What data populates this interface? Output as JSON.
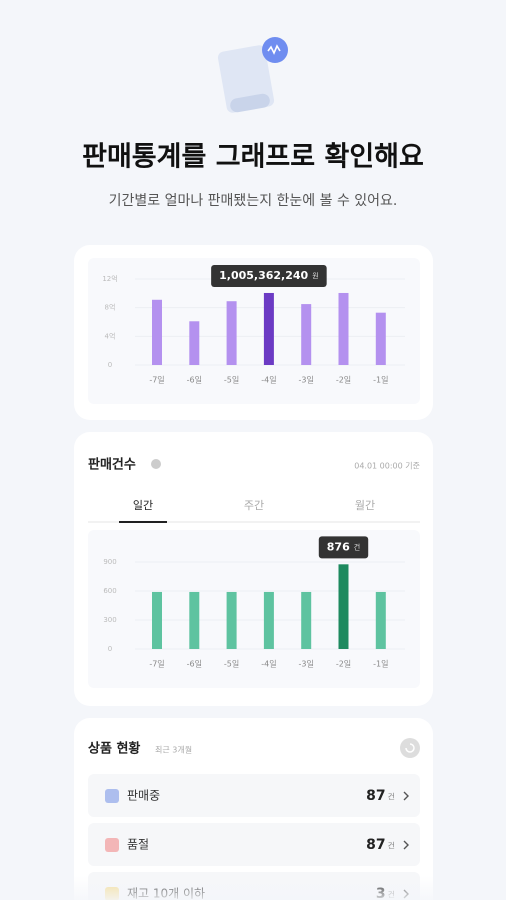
{
  "header": {
    "title": "판매통계를 그래프로 확인해요",
    "subtitle": "기간별로 얼마나 판매됐는지 한눈에 볼 수 있어요."
  },
  "chart_data": [
    {
      "type": "bar",
      "categories": [
        "-7일",
        "-6일",
        "-5일",
        "-4일",
        "-3일",
        "-2일",
        "-1일"
      ],
      "values": [
        9.1,
        6.1,
        8.9,
        10.05,
        8.5,
        10.05,
        7.3
      ],
      "value_labels": [
        null,
        null,
        null,
        "1,005,362,240",
        null,
        null,
        null
      ],
      "value_unit": "원",
      "ylim": [
        0,
        12
      ],
      "yticks": [
        0,
        {
          "value": 4,
          "label": "4억"
        },
        {
          "value": 8,
          "label": "8억"
        },
        {
          "value": 12,
          "label": "12억"
        }
      ],
      "color": "#b491ef",
      "highlight_color": "#6c3bc4",
      "highlight": 3,
      "grid": true
    },
    {
      "type": "bar",
      "title": "판매건수",
      "note": "04.01 00:00 기준",
      "tabs": [
        "일간",
        "주간",
        "월간"
      ],
      "active_tab": 0,
      "categories": [
        "-7일",
        "-6일",
        "-5일",
        "-4일",
        "-3일",
        "-2일",
        "-1일"
      ],
      "values": [
        590,
        590,
        590,
        590,
        590,
        876,
        590
      ],
      "value_labels": [
        null,
        null,
        null,
        null,
        null,
        "876",
        null
      ],
      "value_unit": "건",
      "ylim": [
        0,
        900
      ],
      "yticks": [
        0,
        300,
        600,
        900
      ],
      "color": "#5ec3a0",
      "highlight_color": "#1e8a5f",
      "highlight": 5,
      "grid": true
    }
  ],
  "products": {
    "title": "상품 현황",
    "subtitle": "최근 3개월",
    "items": [
      {
        "label": "판매중",
        "count": 87,
        "unit": "건"
      },
      {
        "label": "품절",
        "count": 87,
        "unit": "건"
      },
      {
        "label": "재고 10개 이하",
        "count": 3,
        "unit": "건"
      }
    ]
  }
}
